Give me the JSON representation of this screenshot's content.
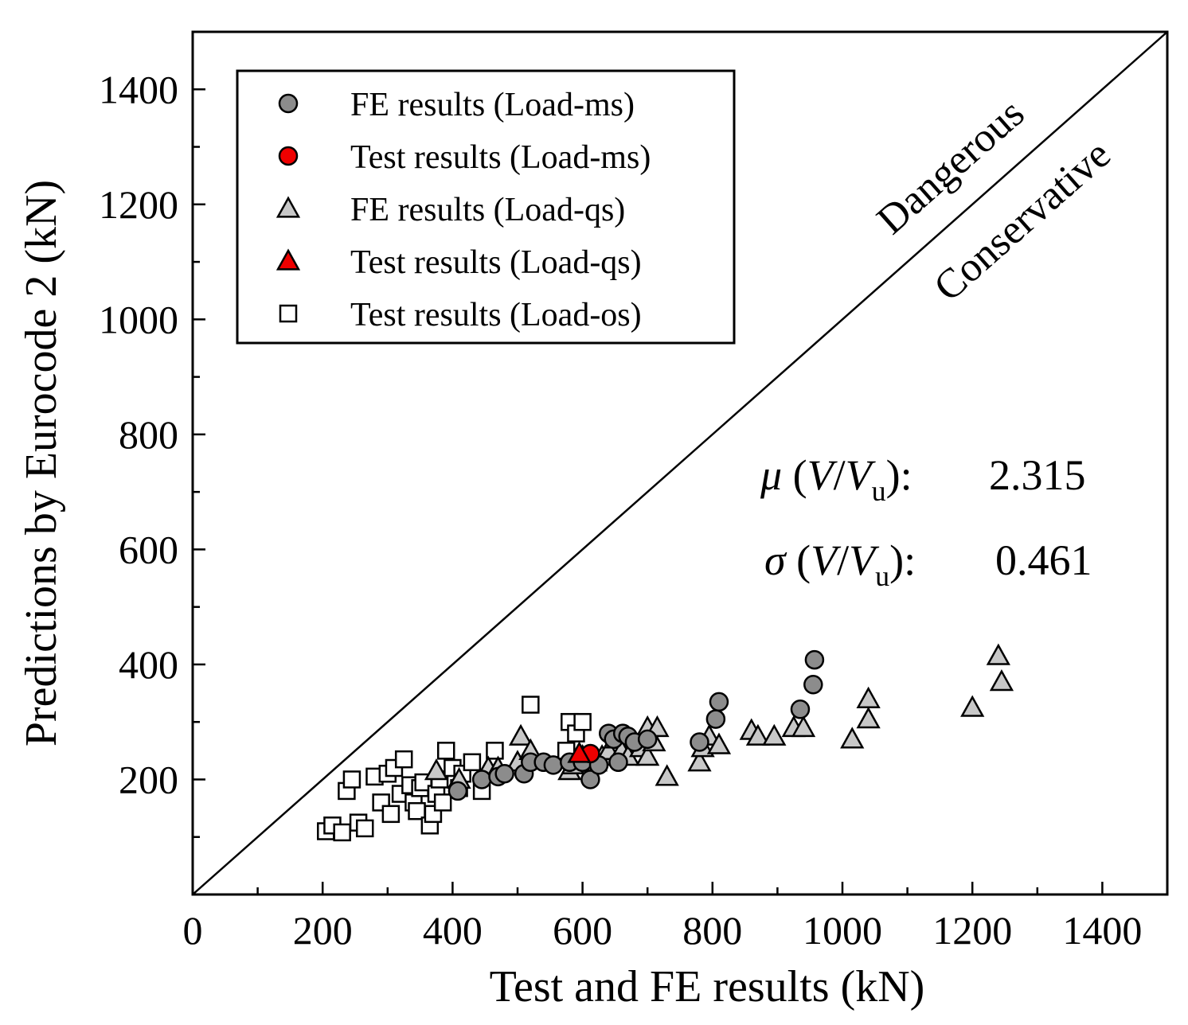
{
  "chart_data": {
    "type": "scatter",
    "xlabel": "Test and FE results (kN)",
    "ylabel": "Predictions by Eurocode 2 (kN)",
    "xlim": [
      0,
      1500
    ],
    "ylim": [
      0,
      1500
    ],
    "x_ticks": [
      "0",
      "200",
      "400",
      "600",
      "800",
      "1000",
      "1200",
      "1400"
    ],
    "y_ticks": [
      "200",
      "400",
      "600",
      "800",
      "1000",
      "1200",
      "1400"
    ],
    "x_tick_values": [
      0,
      200,
      400,
      600,
      800,
      1000,
      1200,
      1400
    ],
    "y_tick_values": [
      200,
      400,
      600,
      800,
      1000,
      1200,
      1400
    ],
    "reference_line": "y = x",
    "region_labels": {
      "above": "Dangerous",
      "below": "Conservative"
    },
    "statistics": {
      "mean_label": "μ",
      "std_label": "σ",
      "ratio_symbol": "V",
      "ratio_sub": "u",
      "mean": "2.315",
      "std": "0.461"
    },
    "colors": {
      "gray": "#8c8c8c",
      "lightgray": "#c8c8c8",
      "red": "#ee0000",
      "white": "#ffffff"
    },
    "series": [
      {
        "name": "FE results (Load-ms)",
        "marker": "circle",
        "color": "#8c8c8c",
        "points": [
          [
            408,
            180
          ],
          [
            445,
            200
          ],
          [
            470,
            205
          ],
          [
            480,
            210
          ],
          [
            510,
            210
          ],
          [
            520,
            230
          ],
          [
            540,
            230
          ],
          [
            555,
            225
          ],
          [
            580,
            230
          ],
          [
            600,
            230
          ],
          [
            612,
            200
          ],
          [
            625,
            225
          ],
          [
            640,
            280
          ],
          [
            648,
            270
          ],
          [
            655,
            230
          ],
          [
            662,
            280
          ],
          [
            670,
            275
          ],
          [
            680,
            265
          ],
          [
            700,
            270
          ],
          [
            780,
            265
          ],
          [
            805,
            305
          ],
          [
            810,
            335
          ],
          [
            935,
            322
          ],
          [
            955,
            365
          ],
          [
            957,
            408
          ]
        ]
      },
      {
        "name": "Test results (Load-ms)",
        "marker": "circle",
        "color": "#ee0000",
        "points": [
          [
            612,
            245
          ]
        ]
      },
      {
        "name": "FE results (Load-qs)",
        "marker": "triangle",
        "color": "#c8c8c8",
        "points": [
          [
            375,
            215
          ],
          [
            410,
            200
          ],
          [
            455,
            220
          ],
          [
            470,
            220
          ],
          [
            500,
            230
          ],
          [
            505,
            275
          ],
          [
            520,
            250
          ],
          [
            580,
            215
          ],
          [
            585,
            225
          ],
          [
            600,
            240
          ],
          [
            620,
            230
          ],
          [
            630,
            240
          ],
          [
            640,
            250
          ],
          [
            650,
            270
          ],
          [
            660,
            250
          ],
          [
            670,
            240
          ],
          [
            690,
            255
          ],
          [
            700,
            290
          ],
          [
            700,
            240
          ],
          [
            710,
            265
          ],
          [
            715,
            290
          ],
          [
            730,
            205
          ],
          [
            780,
            230
          ],
          [
            785,
            255
          ],
          [
            795,
            275
          ],
          [
            810,
            260
          ],
          [
            860,
            285
          ],
          [
            870,
            275
          ],
          [
            895,
            275
          ],
          [
            925,
            290
          ],
          [
            940,
            290
          ],
          [
            1015,
            270
          ],
          [
            1040,
            340
          ],
          [
            1040,
            305
          ],
          [
            1200,
            325
          ],
          [
            1240,
            415
          ],
          [
            1245,
            370
          ]
        ]
      },
      {
        "name": "Test results (Load-qs)",
        "marker": "triangle",
        "color": "#ee0000",
        "points": [
          [
            595,
            245
          ]
        ]
      },
      {
        "name": "Test results (Load-os)",
        "marker": "square",
        "color": "#ffffff",
        "points": [
          [
            205,
            110
          ],
          [
            215,
            120
          ],
          [
            230,
            108
          ],
          [
            237,
            180
          ],
          [
            245,
            200
          ],
          [
            255,
            125
          ],
          [
            265,
            115
          ],
          [
            280,
            205
          ],
          [
            290,
            160
          ],
          [
            300,
            210
          ],
          [
            305,
            140
          ],
          [
            310,
            220
          ],
          [
            320,
            175
          ],
          [
            325,
            235
          ],
          [
            335,
            190
          ],
          [
            340,
            160
          ],
          [
            345,
            145
          ],
          [
            350,
            185
          ],
          [
            355,
            195
          ],
          [
            365,
            120
          ],
          [
            370,
            140
          ],
          [
            375,
            175
          ],
          [
            380,
            200
          ],
          [
            385,
            160
          ],
          [
            390,
            250
          ],
          [
            400,
            220
          ],
          [
            410,
            185
          ],
          [
            415,
            210
          ],
          [
            430,
            230
          ],
          [
            445,
            180
          ],
          [
            465,
            250
          ],
          [
            520,
            330
          ],
          [
            575,
            250
          ],
          [
            580,
            300
          ],
          [
            590,
            280
          ],
          [
            600,
            300
          ]
        ]
      }
    ]
  }
}
